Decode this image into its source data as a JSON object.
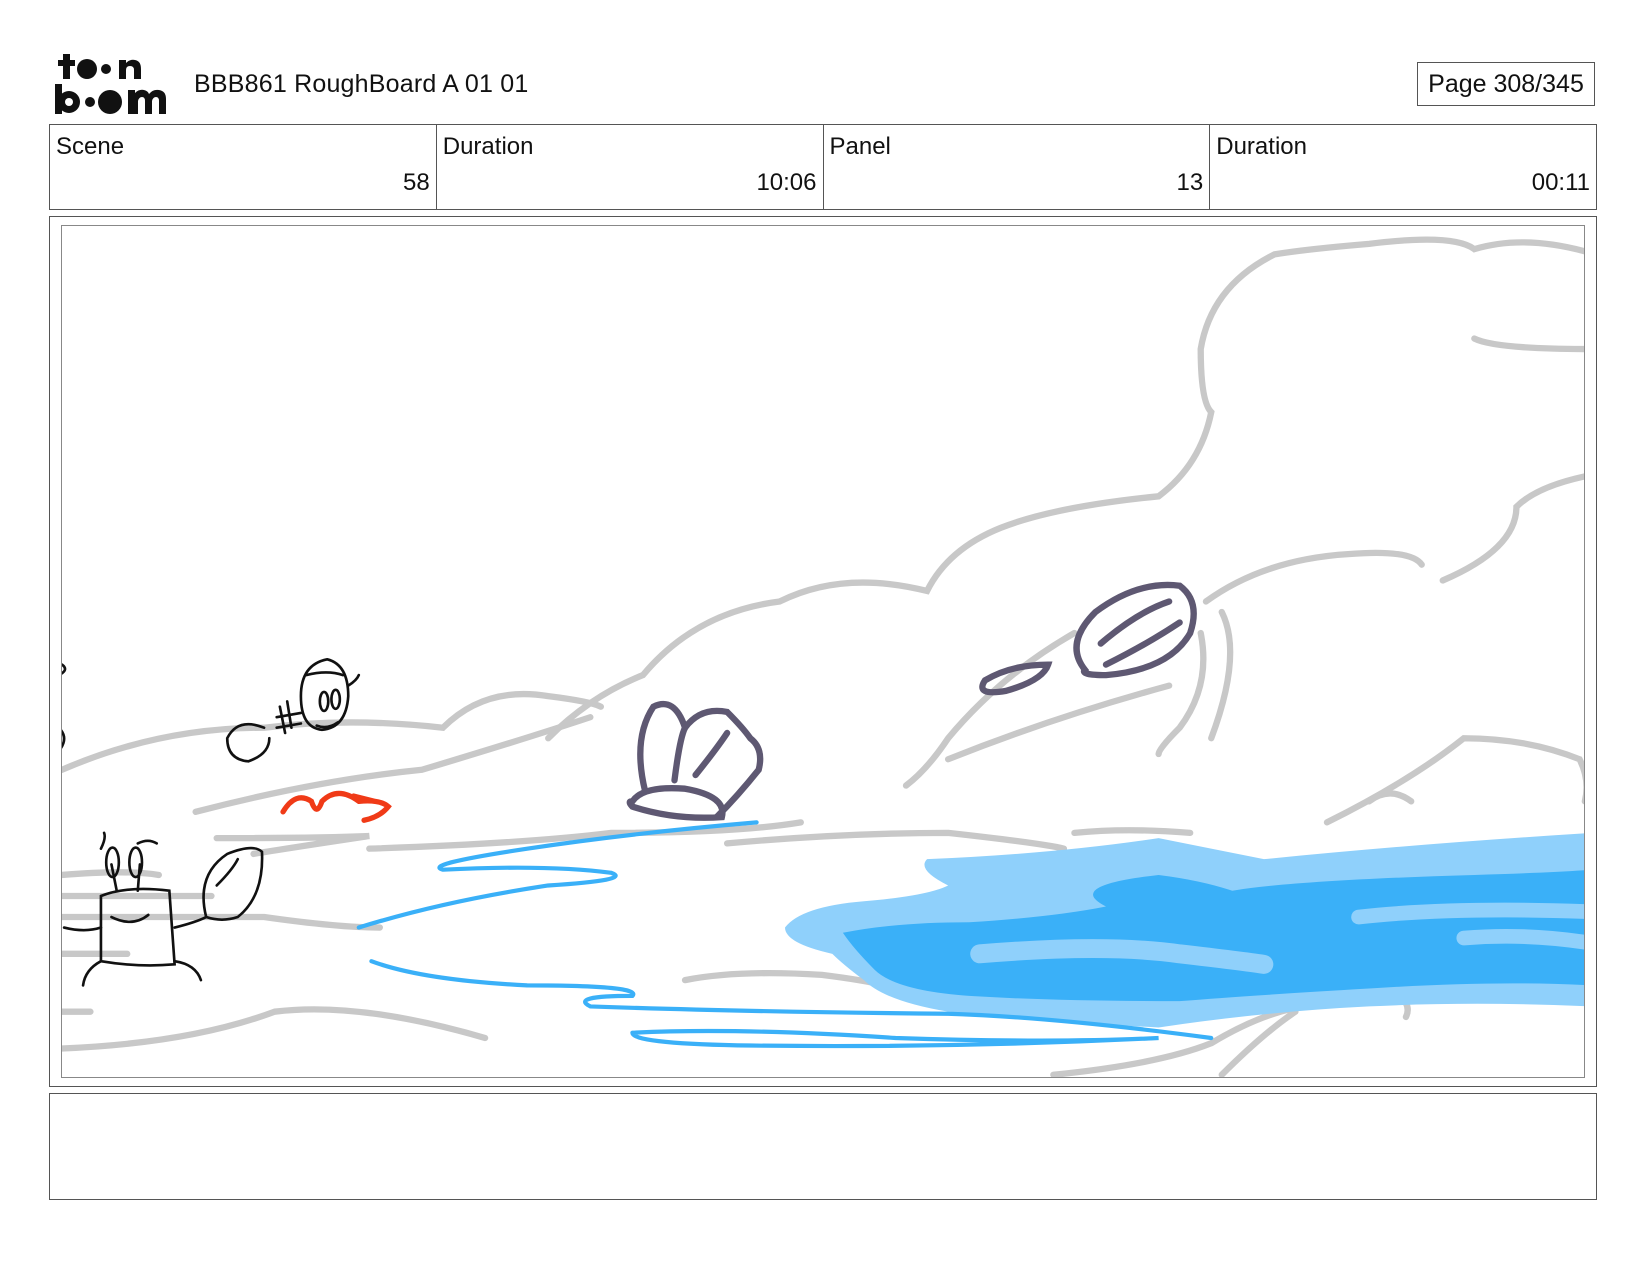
{
  "header": {
    "logo_text": "toon boom",
    "project_title": "BBB861 RoughBoard A 01 01",
    "page_indicator": "Page 308/345"
  },
  "info": [
    {
      "label": "Scene",
      "value": "58"
    },
    {
      "label": "Duration",
      "value": "10:06"
    },
    {
      "label": "Panel",
      "value": "13"
    },
    {
      "label": "Duration",
      "value": "00:11"
    }
  ],
  "panel": {
    "colors": {
      "sketch_gray": "#c8c8c8",
      "water_light": "#8fd0fb",
      "water_dark": "#3ab0f8",
      "shell": "#5e5872",
      "arrow": "#f03a17",
      "ink": "#111111"
    }
  },
  "notes": ""
}
